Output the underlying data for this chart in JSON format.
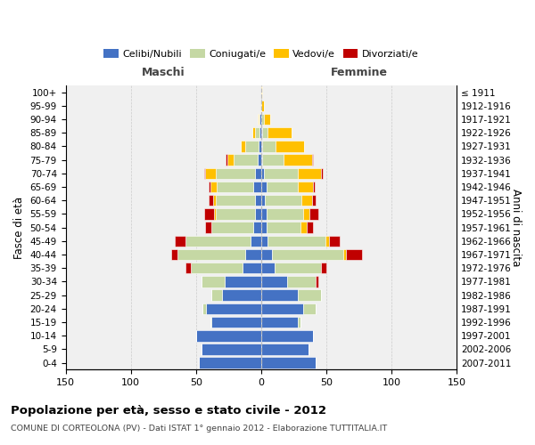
{
  "age_groups": [
    "100+",
    "95-99",
    "90-94",
    "85-89",
    "80-84",
    "75-79",
    "70-74",
    "65-69",
    "60-64",
    "55-59",
    "50-54",
    "45-49",
    "40-44",
    "35-39",
    "30-34",
    "25-29",
    "20-24",
    "15-19",
    "10-14",
    "5-9",
    "0-4"
  ],
  "birth_years": [
    "≤ 1911",
    "1912-1916",
    "1917-1921",
    "1922-1926",
    "1927-1931",
    "1932-1936",
    "1937-1941",
    "1942-1946",
    "1947-1951",
    "1952-1956",
    "1957-1961",
    "1962-1966",
    "1967-1971",
    "1972-1976",
    "1977-1981",
    "1982-1986",
    "1987-1991",
    "1992-1996",
    "1997-2001",
    "2002-2006",
    "2007-2011"
  ],
  "colors": {
    "celibi": "#4472c4",
    "coniugati": "#c5d8a4",
    "vedovi": "#ffc000",
    "divorziati": "#c00000"
  },
  "maschi": {
    "celibi": [
      0,
      0,
      1,
      1,
      2,
      3,
      5,
      6,
      5,
      5,
      6,
      8,
      12,
      14,
      28,
      30,
      42,
      38,
      50,
      46,
      48
    ],
    "coniugati": [
      0,
      0,
      1,
      4,
      10,
      18,
      30,
      28,
      30,
      30,
      32,
      50,
      52,
      40,
      18,
      8,
      3,
      1,
      0,
      0,
      0
    ],
    "vedovi": [
      0,
      0,
      1,
      2,
      4,
      5,
      8,
      5,
      2,
      1,
      0,
      0,
      0,
      0,
      0,
      0,
      0,
      0,
      0,
      0,
      0
    ],
    "divorziati": [
      0,
      0,
      0,
      0,
      0,
      1,
      1,
      1,
      3,
      8,
      5,
      8,
      5,
      4,
      0,
      0,
      0,
      0,
      0,
      0,
      0
    ]
  },
  "femmine": {
    "celibi": [
      0,
      0,
      0,
      1,
      1,
      1,
      2,
      4,
      3,
      4,
      4,
      5,
      8,
      10,
      20,
      28,
      32,
      28,
      40,
      36,
      42
    ],
    "coniugati": [
      0,
      0,
      2,
      4,
      10,
      16,
      26,
      24,
      28,
      28,
      26,
      44,
      55,
      36,
      22,
      18,
      10,
      2,
      0,
      0,
      0
    ],
    "vedovi": [
      1,
      2,
      5,
      18,
      22,
      22,
      18,
      12,
      8,
      5,
      5,
      3,
      2,
      0,
      0,
      0,
      0,
      0,
      0,
      0,
      0
    ],
    "divorziati": [
      0,
      0,
      0,
      0,
      0,
      1,
      1,
      1,
      3,
      7,
      5,
      8,
      12,
      4,
      2,
      0,
      0,
      0,
      0,
      0,
      0
    ]
  },
  "xlim": 150,
  "title": "Popolazione per età, sesso e stato civile - 2012",
  "subtitle": "COMUNE DI CORTEOLONA (PV) - Dati ISTAT 1° gennaio 2012 - Elaborazione TUTTITALIA.IT",
  "ylabel_left": "Fasce di età",
  "ylabel_right": "Anni di nascita",
  "xlabel_maschi": "Maschi",
  "xlabel_femmine": "Femmine",
  "legend_labels": [
    "Celibi/Nubili",
    "Coniugati/e",
    "Vedovi/e",
    "Divorziati/e"
  ],
  "background": "#ffffff",
  "plot_bg": "#f0f0f0",
  "grid_color": "#cccccc"
}
